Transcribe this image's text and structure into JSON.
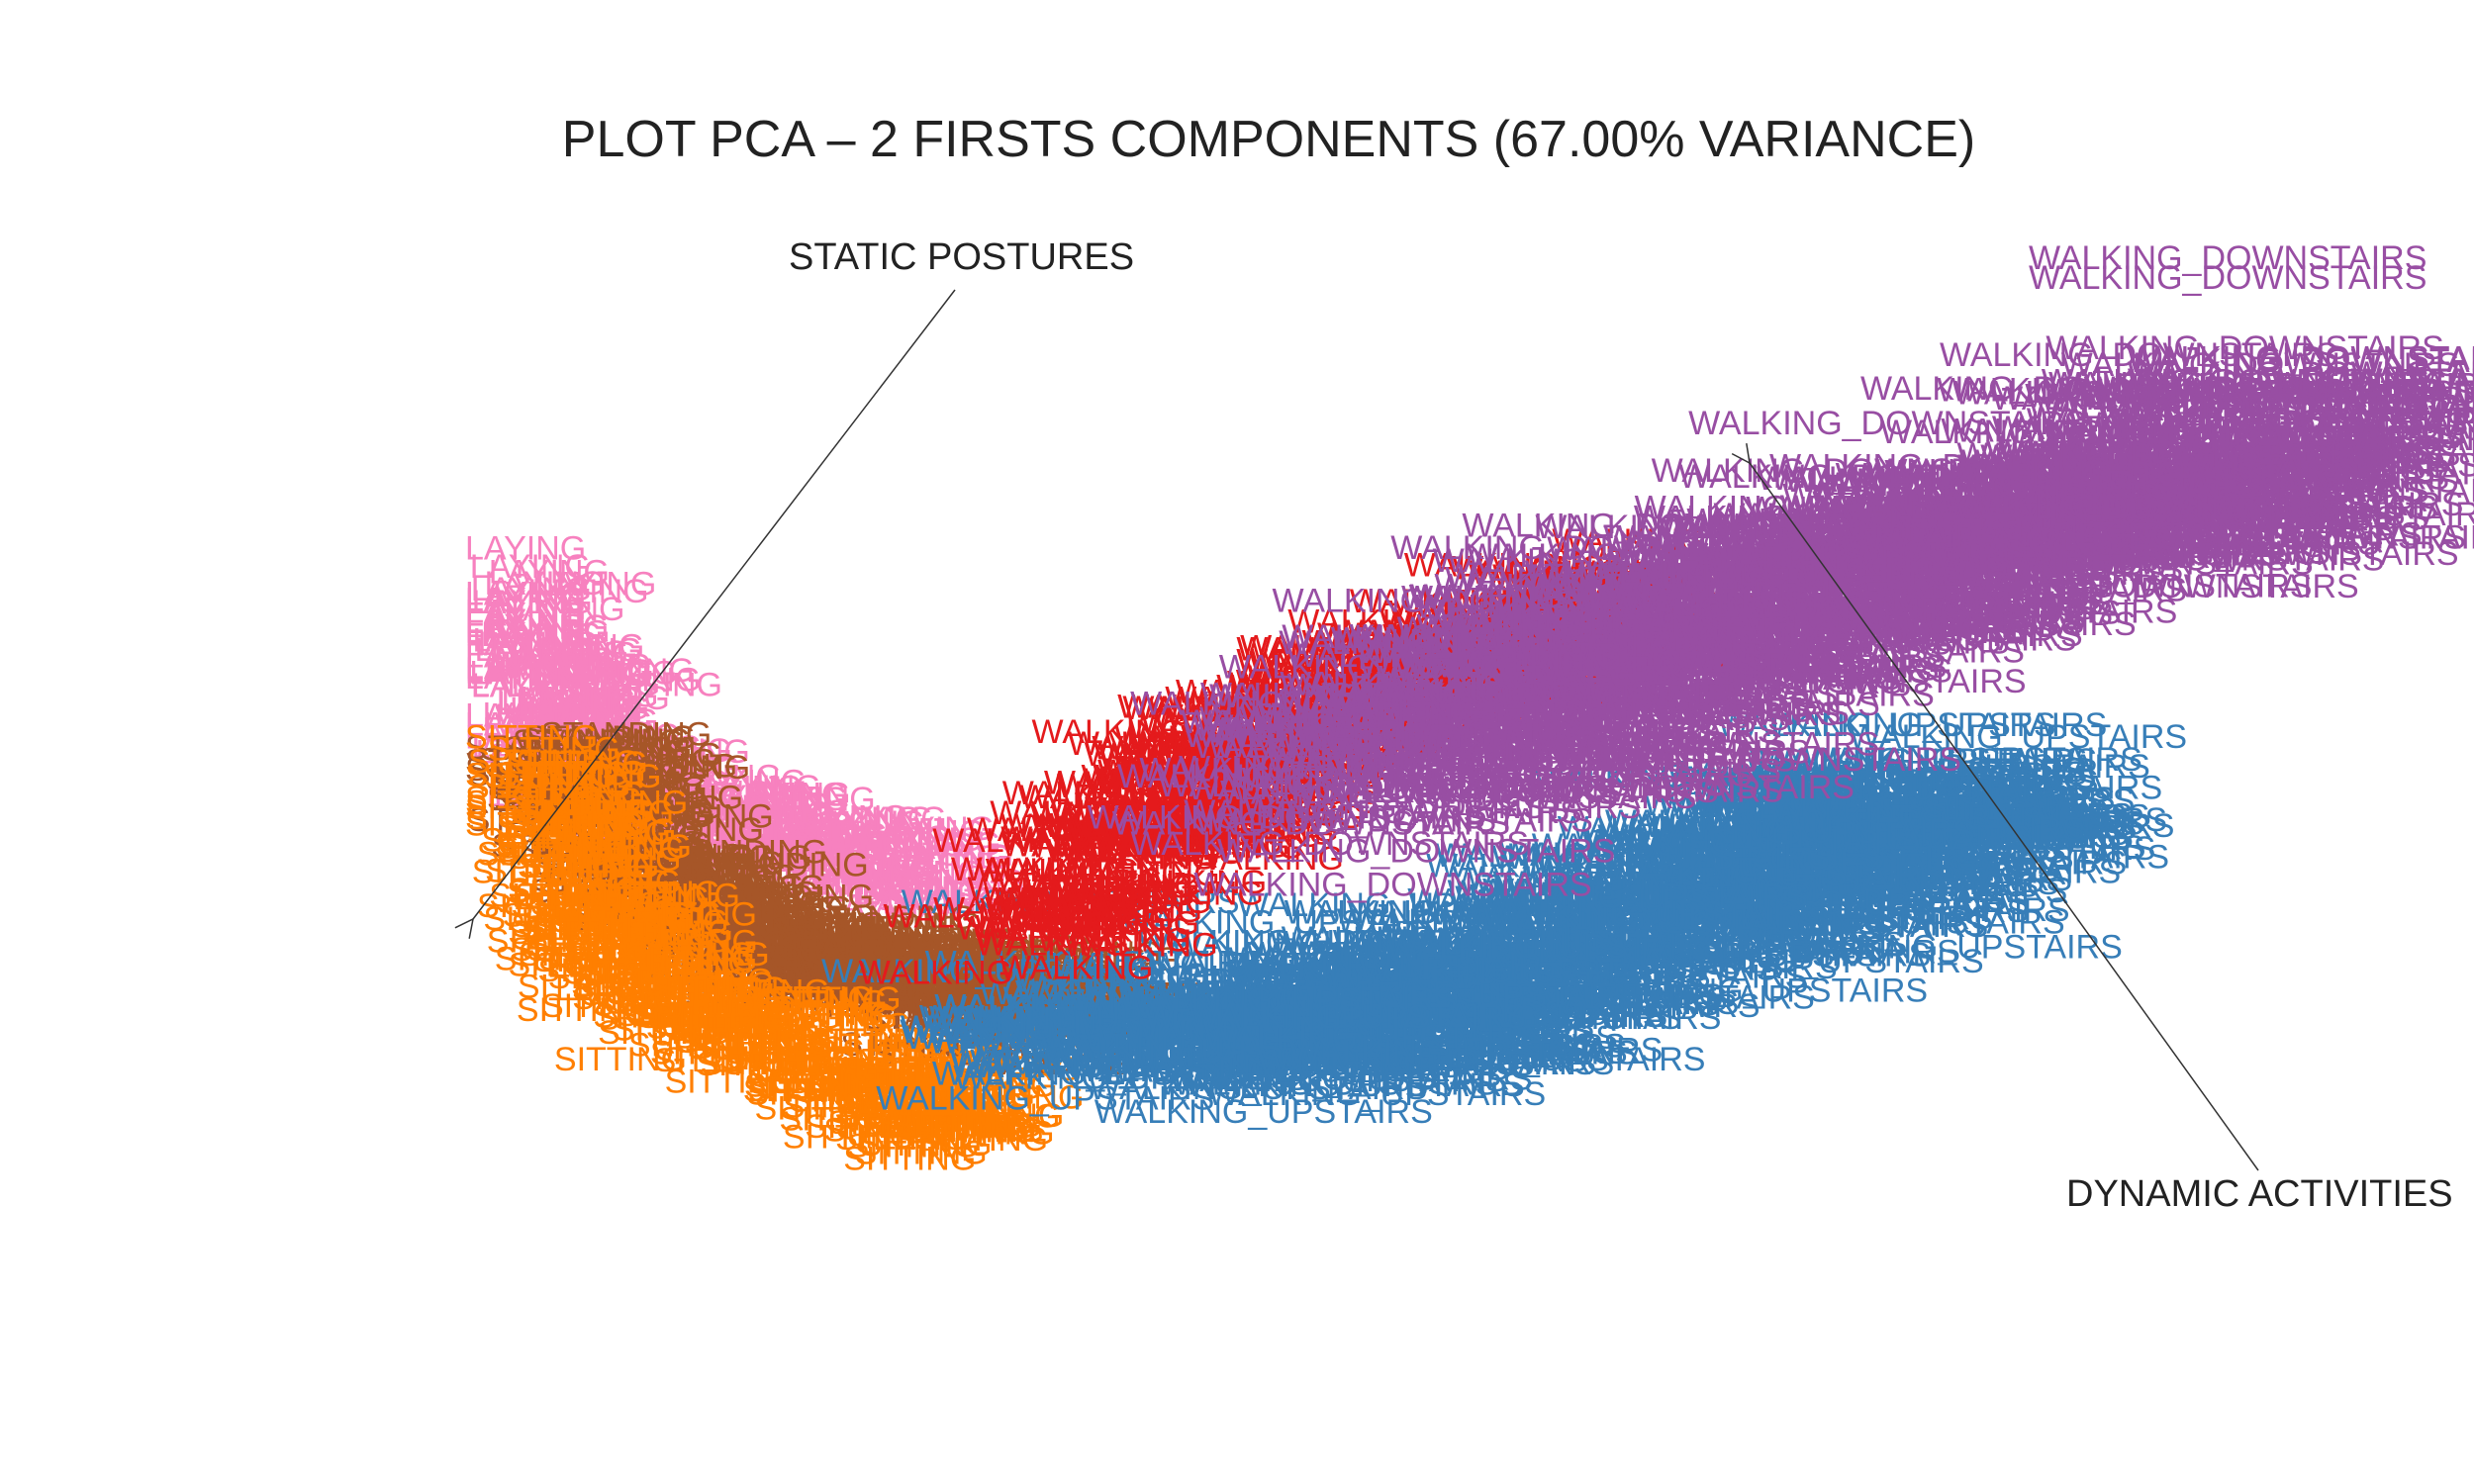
{
  "chart_data": {
    "type": "scatter",
    "title": "PLOT PCA – 2 FIRSTS COMPONENTS (67.00% VARIANCE)",
    "xlabel": "",
    "ylabel": "",
    "grid": false,
    "legend": "none",
    "point_marker": "text label of class name",
    "series": [
      {
        "name": "WALKING",
        "color": "#e41a1c",
        "region": "upper-middle band"
      },
      {
        "name": "WALKING_UPSTAIRS",
        "color": "#377eb8",
        "region": "lower-middle band"
      },
      {
        "name": "WALKING_DOWNSTAIRS",
        "color": "#984ea3",
        "region": "upper-right band"
      },
      {
        "name": "SITTING",
        "color": "#ff7f00",
        "region": "lower-left"
      },
      {
        "name": "STANDING",
        "color": "#a65628",
        "region": "left-center"
      },
      {
        "name": "LAYING",
        "color": "#f781bf",
        "region": "upper-left"
      }
    ],
    "annotations": [
      {
        "text": "STATIC POSTURES"
      },
      {
        "text": "DYNAMIC ACTIVITIES"
      }
    ]
  }
}
